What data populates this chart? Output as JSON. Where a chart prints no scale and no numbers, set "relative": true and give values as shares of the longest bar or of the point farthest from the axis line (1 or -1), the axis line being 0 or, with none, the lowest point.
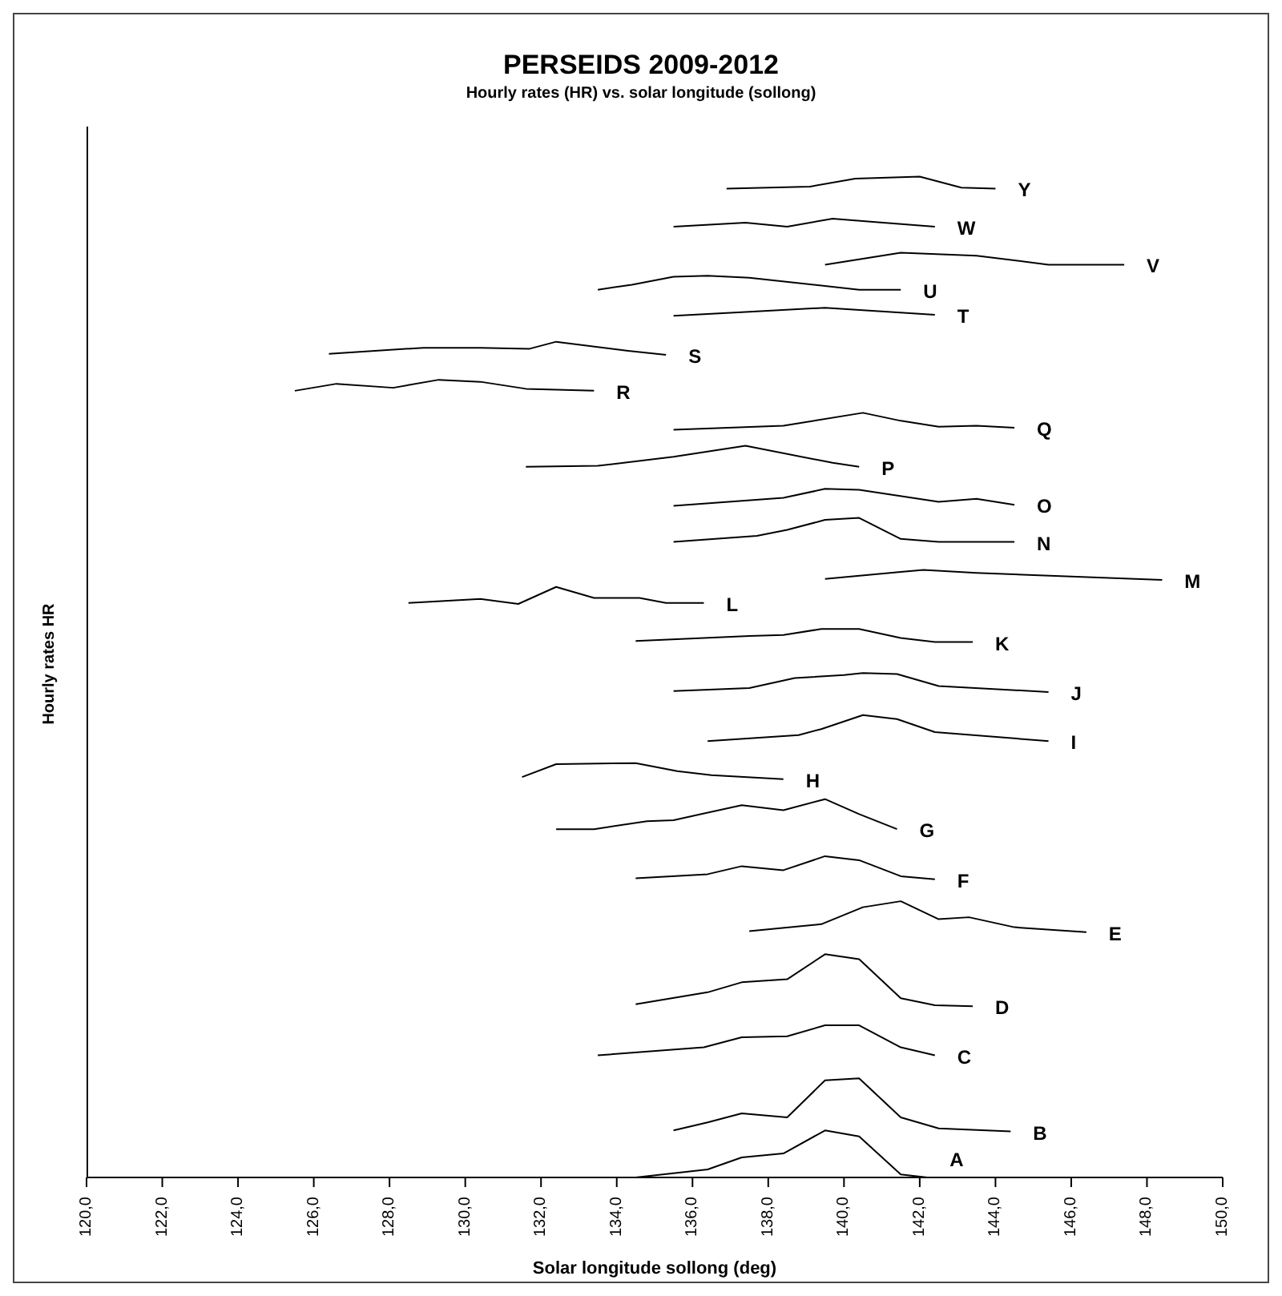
{
  "chart_data": {
    "type": "line",
    "title": "PERSEIDS 2009-2012",
    "subtitle": "Hourly rates (HR) vs. solar longitude (sollong)",
    "xlabel": "Solar longitude sollong  (deg)",
    "ylabel": "Hourly rates HR",
    "relative": true,
    "xlim": [
      120,
      150
    ],
    "xticks": [
      {
        "value": 120,
        "label": "120,0"
      },
      {
        "value": 122,
        "label": "122,0"
      },
      {
        "value": 124,
        "label": "124,0"
      },
      {
        "value": 126,
        "label": "126,0"
      },
      {
        "value": 128,
        "label": "128,0"
      },
      {
        "value": 130,
        "label": "130,0"
      },
      {
        "value": 132,
        "label": "132,0"
      },
      {
        "value": 134,
        "label": "134,0"
      },
      {
        "value": 136,
        "label": "136,0"
      },
      {
        "value": 138,
        "label": "138,0"
      },
      {
        "value": 140,
        "label": "140,0"
      },
      {
        "value": 142,
        "label": "142,0"
      },
      {
        "value": 144,
        "label": "144,0"
      },
      {
        "value": 146,
        "label": "146,0"
      },
      {
        "value": 148,
        "label": "148,0"
      },
      {
        "value": 150,
        "label": "150,0"
      }
    ],
    "series": [
      {
        "name": "A",
        "color": "#000000",
        "x": [
          120,
          134.5,
          136.4,
          137.3,
          138.4,
          139.5,
          140.4,
          141.5,
          142.2
        ],
        "values": [
          0,
          0,
          0.008,
          0.02,
          0.024,
          0.047,
          0.041,
          0.003,
          0
        ]
      },
      {
        "name": "B",
        "color": "#000000",
        "x": [
          135.5,
          136.4,
          137.3,
          138.5,
          139.5,
          140.4,
          141.5,
          142.5,
          144.4
        ],
        "values": [
          0.047,
          0.055,
          0.064,
          0.06,
          0.097,
          0.099,
          0.06,
          0.049,
          0.046
        ]
      },
      {
        "name": "C",
        "color": "#000000",
        "x": [
          133.5,
          136.3,
          137.3,
          138.5,
          139.5,
          140.4,
          141.5,
          142.4
        ],
        "values": [
          0.122,
          0.13,
          0.14,
          0.141,
          0.152,
          0.152,
          0.13,
          0.122
        ]
      },
      {
        "name": "D",
        "color": "#000000",
        "x": [
          134.5,
          136.4,
          137.3,
          138.5,
          139.5,
          140.4,
          141.5,
          142.4,
          143.4
        ],
        "values": [
          0.173,
          0.185,
          0.195,
          0.198,
          0.223,
          0.218,
          0.179,
          0.172,
          0.171
        ]
      },
      {
        "name": "E",
        "color": "#000000",
        "x": [
          137.5,
          139.4,
          140.5,
          141.5,
          142.5,
          143.3,
          144.5,
          146.4
        ],
        "values": [
          0.246,
          0.253,
          0.27,
          0.276,
          0.258,
          0.26,
          0.25,
          0.245
        ]
      },
      {
        "name": "F",
        "color": "#000000",
        "x": [
          134.5,
          136.4,
          137.3,
          138.4,
          139.5,
          140.4,
          141.5,
          142.4
        ],
        "values": [
          0.299,
          0.303,
          0.311,
          0.307,
          0.321,
          0.317,
          0.301,
          0.298
        ]
      },
      {
        "name": "G",
        "color": "#000000",
        "x": [
          132.4,
          133.4,
          134.8,
          135.5,
          137.3,
          138.4,
          139.5,
          140.4,
          141.4
        ],
        "values": [
          0.348,
          0.348,
          0.356,
          0.357,
          0.372,
          0.367,
          0.378,
          0.363,
          0.348
        ]
      },
      {
        "name": "H",
        "color": "#000000",
        "x": [
          131.5,
          132.4,
          134.5,
          135.6,
          136.5,
          138.4
        ],
        "values": [
          0.4,
          0.413,
          0.414,
          0.406,
          0.402,
          0.398
        ]
      },
      {
        "name": "I",
        "color": "#000000",
        "x": [
          136.4,
          138.8,
          139.4,
          140.5,
          141.4,
          142.4,
          145.4
        ],
        "values": [
          0.436,
          0.442,
          0.448,
          0.462,
          0.458,
          0.445,
          0.436
        ]
      },
      {
        "name": "J",
        "color": "#000000",
        "x": [
          135.5,
          137.5,
          138.7,
          140.0,
          140.5,
          141.4,
          142.5,
          145.4
        ],
        "values": [
          0.486,
          0.489,
          0.499,
          0.502,
          0.504,
          0.503,
          0.491,
          0.485
        ]
      },
      {
        "name": "K",
        "color": "#000000",
        "x": [
          134.5,
          137.5,
          138.4,
          139.4,
          140.4,
          141.5,
          142.4,
          143.4
        ],
        "values": [
          0.536,
          0.541,
          0.542,
          0.548,
          0.548,
          0.539,
          0.535,
          0.535
        ]
      },
      {
        "name": "L",
        "color": "#000000",
        "x": [
          128.5,
          130.4,
          131.4,
          132.4,
          133.4,
          134.6,
          135.3,
          136.3
        ],
        "values": [
          0.574,
          0.578,
          0.573,
          0.59,
          0.579,
          0.579,
          0.574,
          0.574
        ]
      },
      {
        "name": "M",
        "color": "#000000",
        "x": [
          139.5,
          141.5,
          142.1,
          143.5,
          148.4
        ],
        "values": [
          0.598,
          0.605,
          0.607,
          0.604,
          0.597
        ]
      },
      {
        "name": "N",
        "color": "#000000",
        "x": [
          135.5,
          137.7,
          138.5,
          139.5,
          140.4,
          141.5,
          142.5,
          144.5
        ],
        "values": [
          0.635,
          0.641,
          0.647,
          0.657,
          0.659,
          0.638,
          0.635,
          0.635
        ]
      },
      {
        "name": "O",
        "color": "#000000",
        "x": [
          135.5,
          138.4,
          139.5,
          140.4,
          142.5,
          143.5,
          144.5
        ],
        "values": [
          0.671,
          0.679,
          0.688,
          0.687,
          0.675,
          0.678,
          0.672
        ]
      },
      {
        "name": "P",
        "color": "#000000",
        "x": [
          131.6,
          133.5,
          135.5,
          137.4,
          139.7,
          140.4
        ],
        "values": [
          0.71,
          0.711,
          0.72,
          0.731,
          0.714,
          0.71
        ]
      },
      {
        "name": "Q",
        "color": "#000000",
        "x": [
          135.5,
          138.4,
          140.5,
          141.5,
          142.5,
          143.5,
          144.5
        ],
        "values": [
          0.747,
          0.751,
          0.764,
          0.756,
          0.75,
          0.751,
          0.749
        ]
      },
      {
        "name": "R",
        "color": "#000000",
        "x": [
          125.5,
          126.6,
          128.1,
          129.3,
          130.4,
          131.6,
          133.4
        ],
        "values": [
          0.786,
          0.793,
          0.789,
          0.797,
          0.795,
          0.788,
          0.786
        ]
      },
      {
        "name": "S",
        "color": "#000000",
        "x": [
          126.4,
          128.9,
          130.4,
          131.7,
          132.4,
          134.3,
          135.3
        ],
        "values": [
          0.823,
          0.829,
          0.829,
          0.828,
          0.835,
          0.826,
          0.822
        ]
      },
      {
        "name": "T",
        "color": "#000000",
        "x": [
          135.5,
          137.5,
          139.5,
          142.4
        ],
        "values": [
          0.861,
          0.865,
          0.869,
          0.862
        ]
      },
      {
        "name": "U",
        "color": "#000000",
        "x": [
          133.5,
          134.4,
          135.5,
          136.4,
          137.5,
          140.4,
          141.5
        ],
        "values": [
          0.887,
          0.892,
          0.9,
          0.901,
          0.899,
          0.887,
          0.887
        ]
      },
      {
        "name": "V",
        "color": "#000000",
        "x": [
          139.5,
          141.5,
          143.5,
          145.4,
          147.4
        ],
        "values": [
          0.912,
          0.924,
          0.921,
          0.912,
          0.912
        ]
      },
      {
        "name": "W",
        "color": "#000000",
        "x": [
          135.5,
          137.4,
          138.5,
          139.7,
          140.7,
          142.4
        ],
        "values": [
          0.95,
          0.954,
          0.95,
          0.958,
          0.955,
          0.95
        ]
      },
      {
        "name": "Y",
        "color": "#000000",
        "x": [
          136.9,
          139.1,
          140.3,
          142.0,
          143.1,
          144.0
        ],
        "values": [
          0.988,
          0.99,
          0.998,
          1,
          0.989,
          0.988
        ]
      }
    ]
  }
}
